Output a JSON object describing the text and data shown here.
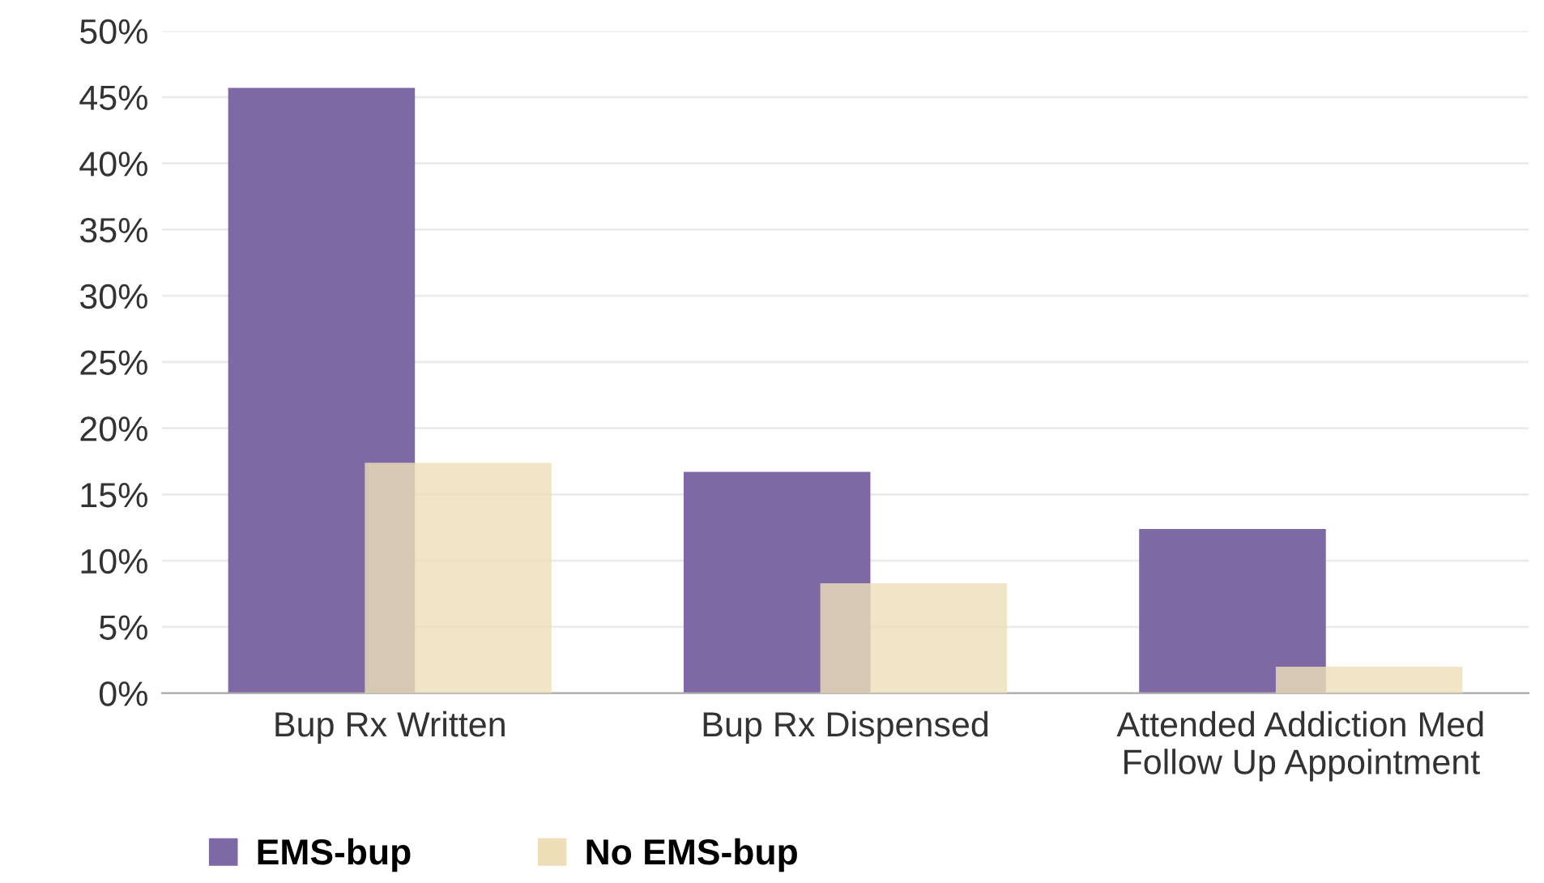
{
  "chart_data": {
    "type": "bar",
    "categories": [
      "Bup Rx Written",
      "Bup Rx Dispensed",
      "Attended Addiction Med\nFollow Up Appointment"
    ],
    "series": [
      {
        "name": "EMS-bup",
        "color": "#7f69a5",
        "values": [
          45.7,
          16.7,
          12.4
        ]
      },
      {
        "name": "No EMS-bup",
        "color": "#eedfb9",
        "values": [
          17.4,
          8.3,
          2.0
        ]
      }
    ],
    "ylim": [
      0,
      50
    ],
    "yticks": [
      {
        "value": 0,
        "label": "0%"
      },
      {
        "value": 5,
        "label": "5%"
      },
      {
        "value": 10,
        "label": "10%"
      },
      {
        "value": 15,
        "label": "15%"
      },
      {
        "value": 20,
        "label": "20%"
      },
      {
        "value": 25,
        "label": "25%"
      },
      {
        "value": 30,
        "label": "30%"
      },
      {
        "value": 35,
        "label": "35%"
      },
      {
        "value": 40,
        "label": "40%"
      },
      {
        "value": 45,
        "label": "45%"
      },
      {
        "value": 50,
        "label": "50%"
      }
    ],
    "grid": "y",
    "legend": "bottom"
  }
}
